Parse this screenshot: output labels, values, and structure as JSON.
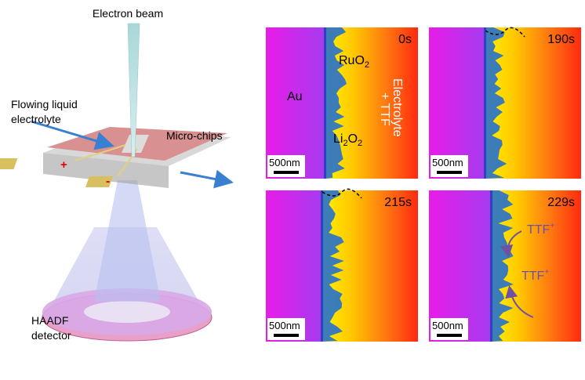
{
  "diagram": {
    "beam": "Electron beam",
    "liquid": [
      "Flowing liquid",
      "electrolyte"
    ],
    "chips": "Micro-chips",
    "detector": [
      "HAADF",
      "detector"
    ],
    "plus": "+",
    "minus": "-"
  },
  "panels": [
    {
      "time": "0s",
      "scale_bar": "500nm"
    },
    {
      "time": "190s",
      "scale_bar": "500nm"
    },
    {
      "time": "215s",
      "scale_bar": "500nm"
    },
    {
      "time": "229s",
      "scale_bar": "500nm"
    }
  ],
  "annotations": {
    "au": "Au",
    "ruo2": {
      "base": "RuO",
      "sub": "2"
    },
    "li2o2": {
      "base": "Li",
      "sub1": "2",
      "mid": "O",
      "sub2": "2"
    },
    "electrolyte": [
      "Electrolyte",
      "+ TTF"
    ],
    "ttf1": {
      "base": "TTF",
      "sup": "+"
    },
    "ttf2": {
      "base": "TTF",
      "sup": "+"
    }
  }
}
